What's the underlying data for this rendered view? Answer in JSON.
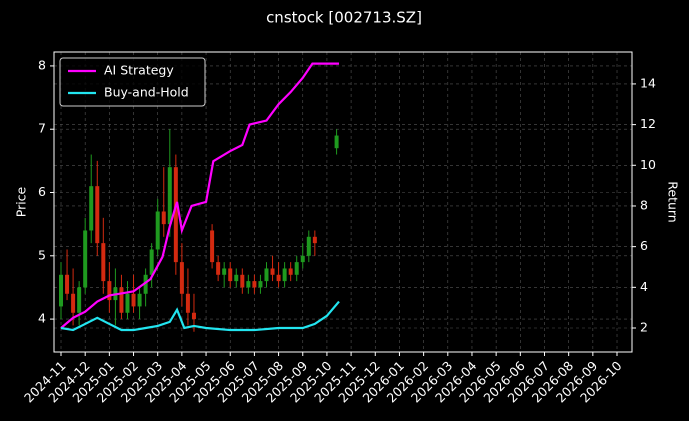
{
  "chart_data": {
    "type": "candlestick",
    "title": "cnstock [002713.SZ]",
    "ylabel": "Price",
    "y2label": "Return",
    "background": "#000000",
    "grid": true,
    "legend": "upper left",
    "xlim": [
      -0.29,
      23.62
    ],
    "xticks": [
      {
        "value": 0,
        "label": "2024-11"
      },
      {
        "value": 1,
        "label": "2024-12"
      },
      {
        "value": 2,
        "label": "2025-01"
      },
      {
        "value": 3,
        "label": "2025-02"
      },
      {
        "value": 4,
        "label": "2025-03"
      },
      {
        "value": 5,
        "label": "2025-04"
      },
      {
        "value": 6,
        "label": "2025-05"
      },
      {
        "value": 7,
        "label": "2025-06"
      },
      {
        "value": 8,
        "label": "2025-07"
      },
      {
        "value": 9,
        "label": "2025-08"
      },
      {
        "value": 10,
        "label": "2025-09"
      },
      {
        "value": 11,
        "label": "2025-10"
      },
      {
        "value": 12,
        "label": "2025-11"
      },
      {
        "value": 13,
        "label": "2025-12"
      },
      {
        "value": 14,
        "label": "2026-01"
      },
      {
        "value": 15,
        "label": "2026-02"
      },
      {
        "value": 16,
        "label": "2026-03"
      },
      {
        "value": 17,
        "label": "2026-04"
      },
      {
        "value": 18,
        "label": "2026-05"
      },
      {
        "value": 19,
        "label": "2026-06"
      },
      {
        "value": 20,
        "label": "2026-07"
      },
      {
        "value": 21,
        "label": "2026-08"
      },
      {
        "value": 22,
        "label": "2026-09"
      },
      {
        "value": 23,
        "label": "2026-10"
      }
    ],
    "ylim": [
      3.48,
      8.22
    ],
    "yticks": [
      4,
      5,
      6,
      7,
      8
    ],
    "y2lim": [
      0.82,
      15.57
    ],
    "y2ticks": [
      2,
      4,
      6,
      8,
      10,
      12,
      14
    ],
    "up_color": "#1f9a1f",
    "down_color": "#d42a10",
    "candles": {
      "x": [
        0,
        0.25,
        0.5,
        0.75,
        1,
        1.25,
        1.5,
        1.75,
        2,
        2.25,
        2.5,
        2.75,
        3,
        3.25,
        3.5,
        3.75,
        4,
        4.25,
        4.5,
        4.75,
        5,
        5.25,
        5.5,
        6.25,
        6.5,
        6.75,
        7,
        7.25,
        7.5,
        7.75,
        8,
        8.25,
        8.5,
        8.75,
        9,
        9.25,
        9.5,
        9.75,
        10,
        10.25,
        10.5,
        11.4
      ],
      "open": [
        4.2,
        4.7,
        4.4,
        4.1,
        4.5,
        5.4,
        6.1,
        5.2,
        4.6,
        4.3,
        4.5,
        4.1,
        4.4,
        4.2,
        4.4,
        4.7,
        5.1,
        5.7,
        5.5,
        6.4,
        4.9,
        4.4,
        4.1,
        5.4,
        4.9,
        4.7,
        4.8,
        4.6,
        4.7,
        4.5,
        4.6,
        4.5,
        4.6,
        4.8,
        4.7,
        4.6,
        4.8,
        4.7,
        4.9,
        5.0,
        5.3,
        6.7
      ],
      "high": [
        4.9,
        5.1,
        4.8,
        4.6,
        5.6,
        6.6,
        6.5,
        5.6,
        4.9,
        4.8,
        4.7,
        4.6,
        4.7,
        4.5,
        4.8,
        5.2,
        5.9,
        6.4,
        7.0,
        6.6,
        5.2,
        4.8,
        4.4,
        5.5,
        5.0,
        4.9,
        4.9,
        4.8,
        4.8,
        4.7,
        4.7,
        4.7,
        4.9,
        5.0,
        4.9,
        4.9,
        4.9,
        5.0,
        5.2,
        5.4,
        5.4,
        7.0
      ],
      "low": [
        4.0,
        4.3,
        3.9,
        3.9,
        4.4,
        5.2,
        5.0,
        4.4,
        4.1,
        3.9,
        4.0,
        4.0,
        4.1,
        4.0,
        4.2,
        4.5,
        5.0,
        5.3,
        5.3,
        4.7,
        4.2,
        3.9,
        3.8,
        4.8,
        4.6,
        4.5,
        4.5,
        4.5,
        4.4,
        4.4,
        4.4,
        4.4,
        4.5,
        4.6,
        4.5,
        4.5,
        4.6,
        4.6,
        4.8,
        4.9,
        5.0,
        6.6
      ],
      "close": [
        4.7,
        4.4,
        4.1,
        4.5,
        5.4,
        6.1,
        5.2,
        4.6,
        4.3,
        4.5,
        4.1,
        4.4,
        4.2,
        4.4,
        4.7,
        5.1,
        5.7,
        5.5,
        6.4,
        4.9,
        4.4,
        4.1,
        4.0,
        4.9,
        4.7,
        4.8,
        4.6,
        4.7,
        4.5,
        4.6,
        4.5,
        4.6,
        4.8,
        4.7,
        4.6,
        4.8,
        4.7,
        4.9,
        5.0,
        5.3,
        5.2,
        6.9
      ]
    },
    "series": [
      {
        "name": "AI Strategy",
        "color": "#ff00ff",
        "axis": "y2",
        "x": [
          0,
          0.5,
          1,
          1.5,
          2,
          3,
          3.7,
          4.2,
          4.5,
          4.8,
          5.0,
          5.4,
          6.0,
          6.3,
          7.0,
          7.5,
          7.8,
          8.5,
          9.0,
          9.5,
          10.0,
          10.4,
          11.5
        ],
        "values": [
          2.0,
          2.5,
          2.8,
          3.3,
          3.6,
          3.8,
          4.4,
          5.5,
          7.0,
          8.2,
          6.8,
          8.0,
          8.2,
          10.2,
          10.7,
          11.0,
          12.0,
          12.2,
          13.0,
          13.6,
          14.3,
          15.0,
          15.0
        ]
      },
      {
        "name": "Buy-and-Hold",
        "color": "#22e5f0",
        "axis": "y2",
        "x": [
          0,
          0.5,
          1,
          1.5,
          2,
          2.5,
          3,
          3.5,
          4,
          4.5,
          4.8,
          5.1,
          5.5,
          6,
          7,
          8,
          9,
          10,
          10.5,
          11,
          11.5
        ],
        "values": [
          2.0,
          1.9,
          2.2,
          2.5,
          2.2,
          1.9,
          1.9,
          2.0,
          2.1,
          2.3,
          2.9,
          2.0,
          2.1,
          2.0,
          1.9,
          1.9,
          2.0,
          2.0,
          2.2,
          2.6,
          3.3
        ]
      }
    ]
  }
}
